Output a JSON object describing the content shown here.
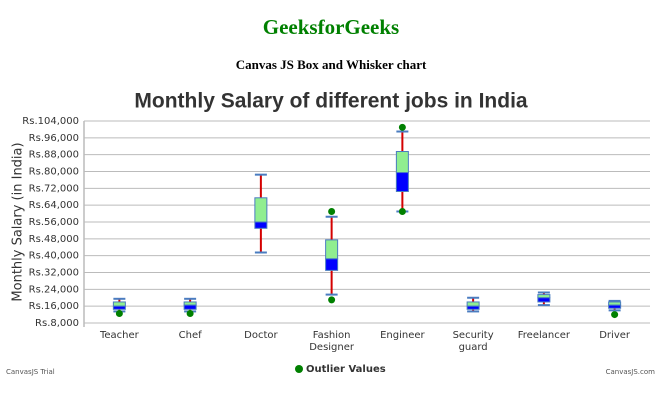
{
  "header": {
    "title": "GeeksforGeeks",
    "subtitle": "Canvas JS Box and Whisker chart"
  },
  "footer": {
    "left": "CanvasJS Trial",
    "right": "CanvasJS.com"
  },
  "chart_data": {
    "type": "box",
    "title": "Monthly Salary of different jobs in India",
    "y_label": "Monthly Salary (in India)",
    "categories": [
      "Teacher",
      "Chef",
      "Doctor",
      "Fashion Designer",
      "Engineer",
      "Security guard",
      "Freelancer",
      "Driver"
    ],
    "boxes": [
      {
        "min": 13500,
        "q1": 14500,
        "median": 16000,
        "q3": 18000,
        "max": 19500
      },
      {
        "min": 13500,
        "q1": 14500,
        "median": 16500,
        "q3": 18000,
        "max": 19500
      },
      {
        "min": 41500,
        "q1": 53000,
        "median": 56000,
        "q3": 67500,
        "max": 78500
      },
      {
        "min": 21500,
        "q1": 33000,
        "median": 38500,
        "q3": 47500,
        "max": 58500
      },
      {
        "min": 61000,
        "q1": 70500,
        "median": 79500,
        "q3": 89500,
        "max": 99000
      },
      {
        "min": 13500,
        "q1": 14500,
        "median": 16000,
        "q3": 18000,
        "max": 20000
      },
      {
        "min": 16500,
        "q1": 18000,
        "median": 20000,
        "q3": 21500,
        "max": 22500
      },
      {
        "min": 14000,
        "q1": 15000,
        "median": 16500,
        "q3": 18000,
        "max": 18500
      }
    ],
    "box_upper_color": "#90ee90",
    "box_lower_color": "#0000ff",
    "whisker_color": "#d40000",
    "cap_color": "#4a7cc0",
    "outliers": {
      "name": "Outlier Values",
      "color": "#008000",
      "values": [
        [
          12500
        ],
        [
          12500
        ],
        [],
        [
          61000,
          19000
        ],
        [
          101000,
          61000
        ],
        [],
        [],
        [
          12000
        ]
      ]
    },
    "ylim": [
      8000,
      104000
    ],
    "yticks": [
      {
        "value": 8000,
        "label": "Rs.8,000"
      },
      {
        "value": 16000,
        "label": "Rs.16,000"
      },
      {
        "value": 24000,
        "label": "Rs.24,000"
      },
      {
        "value": 32000,
        "label": "Rs.32,000"
      },
      {
        "value": 40000,
        "label": "Rs.40,000"
      },
      {
        "value": 48000,
        "label": "Rs.48,000"
      },
      {
        "value": 56000,
        "label": "Rs.56,000"
      },
      {
        "value": 64000,
        "label": "Rs.64,000"
      },
      {
        "value": 72000,
        "label": "Rs.72,000"
      },
      {
        "value": 80000,
        "label": "Rs.80,000"
      },
      {
        "value": 88000,
        "label": "Rs.88,000"
      },
      {
        "value": 96000,
        "label": "Rs.96,000"
      },
      {
        "value": 104000,
        "label": "Rs.104,000"
      }
    ],
    "grid": true
  }
}
